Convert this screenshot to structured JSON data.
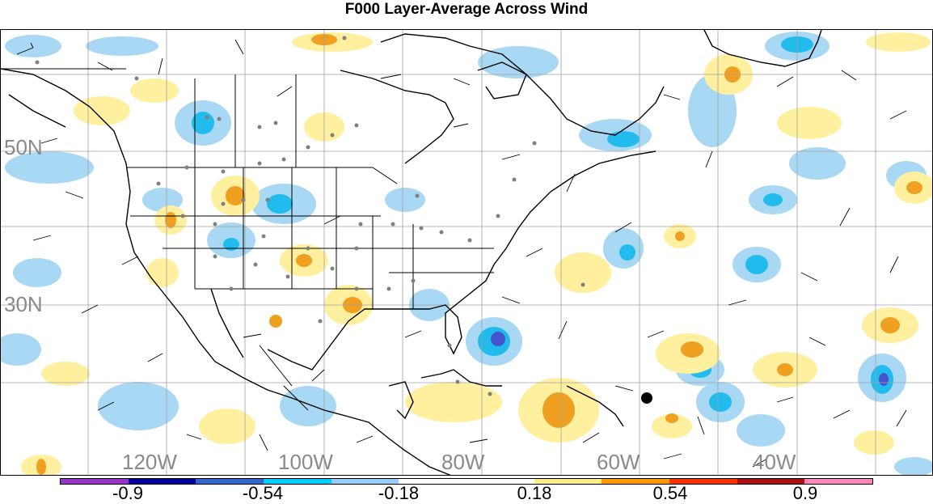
{
  "title": "F000 Layer-Average Across Wind",
  "map": {
    "lat_labels": [
      "50N",
      "30N"
    ],
    "lon_labels": [
      "120W",
      "100W",
      "80W",
      "60W",
      "40W"
    ],
    "colors": {
      "grid": "#a0a0a0",
      "coast": "#000000",
      "station": "#808080",
      "barb": "#000000"
    }
  },
  "colorbar": {
    "colors": [
      "#9933cc",
      "#000099",
      "#3366cc",
      "#00ccff",
      "#99ccff",
      "#ffffff",
      "#ffffff",
      "#ffee88",
      "#ff9900",
      "#ff3300",
      "#aa1111",
      "#ff88bb"
    ],
    "labels": [
      "-0.9",
      "-0.54",
      "-0.18",
      "0.18",
      "0.54",
      "0.9"
    ]
  }
}
